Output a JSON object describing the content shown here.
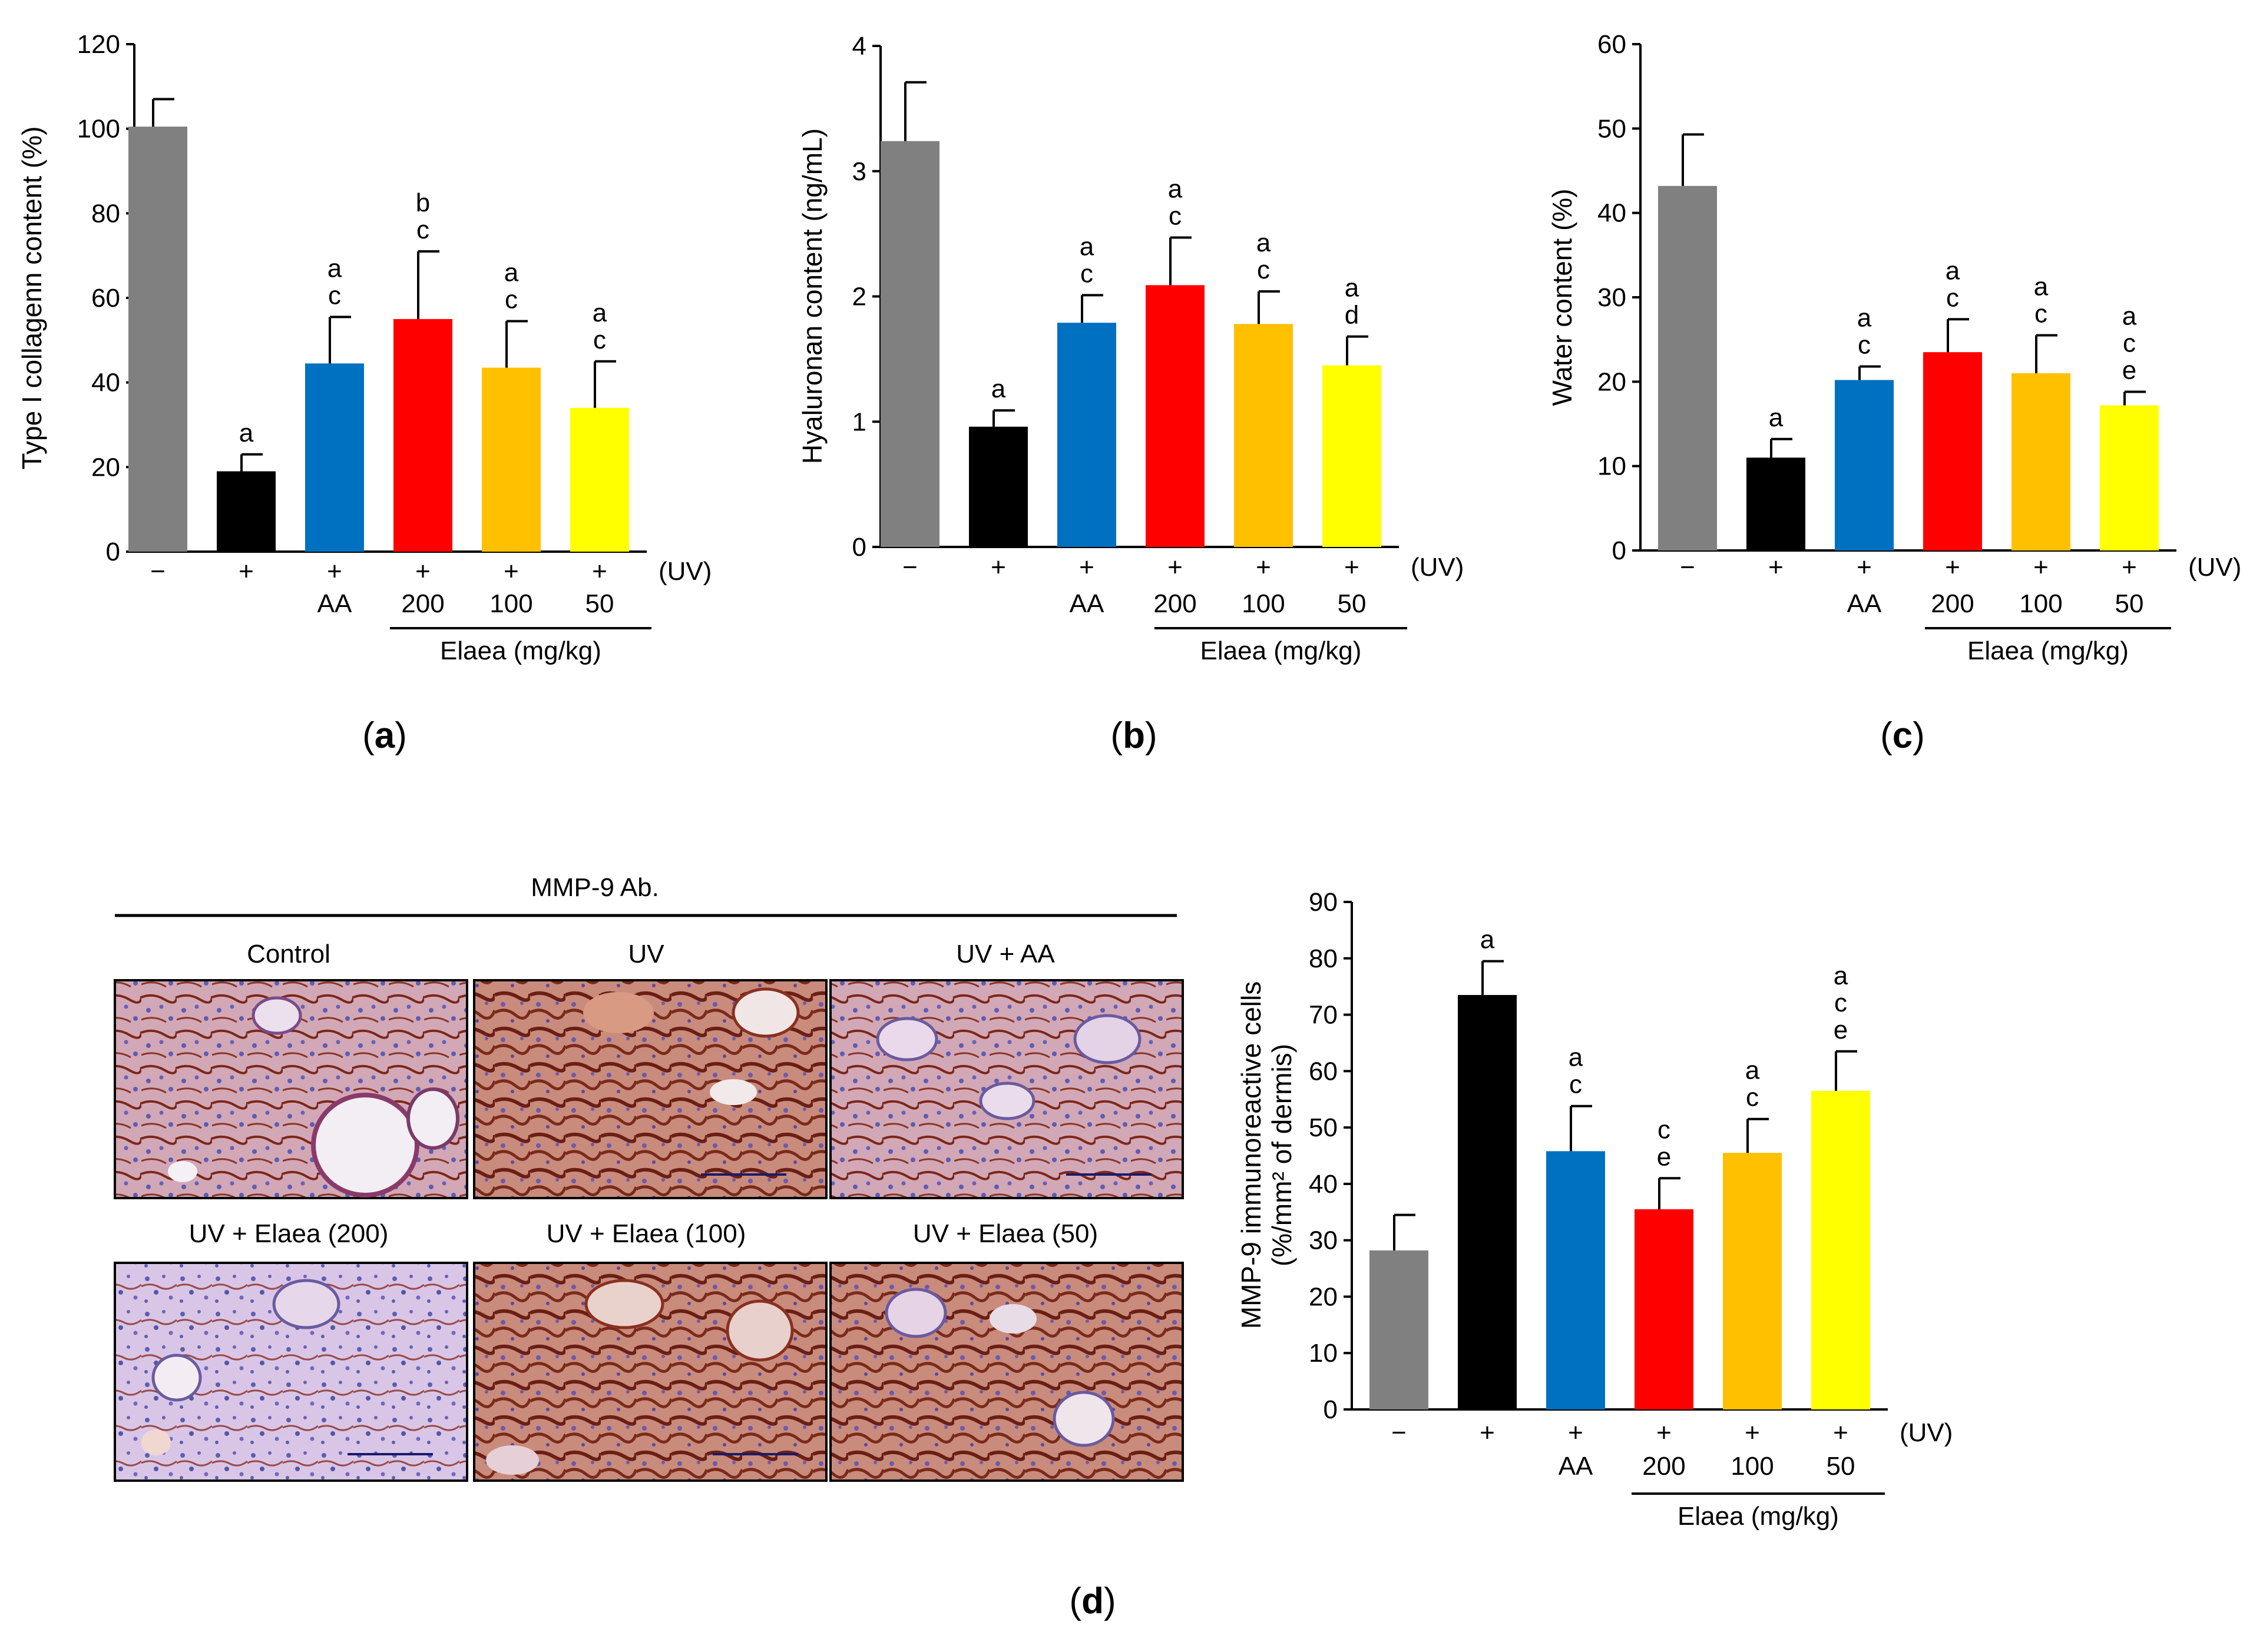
{
  "chart_data": [
    {
      "id": "a",
      "type": "bar",
      "panel_label": "a",
      "ylabel": "Type I collagenn content (%)",
      "ylim": [
        0,
        120
      ],
      "yticks": [
        0,
        20,
        40,
        60,
        80,
        100,
        120
      ],
      "values": [
        100.5,
        19,
        44.5,
        55,
        43.5,
        34
      ],
      "errors": [
        6.5,
        4,
        11,
        16,
        11,
        11
      ],
      "sig": [
        [],
        [
          "a"
        ],
        [
          "a",
          "c"
        ],
        [
          "b",
          "c"
        ],
        [
          "a",
          "c"
        ],
        [
          "a",
          "c"
        ]
      ],
      "uv": [
        "−",
        "+",
        "+",
        "+",
        "+",
        "+"
      ],
      "uv_label": "(UV)",
      "treatments": [
        "",
        "",
        "AA",
        "200",
        "100",
        "50"
      ],
      "group_label": "Elaea (mg/kg)",
      "colors": [
        "#808080",
        "#000000",
        "#0070C0",
        "#FF0000",
        "#FFC000",
        "#FFFF00"
      ]
    },
    {
      "id": "b",
      "type": "bar",
      "panel_label": "b",
      "ylabel": "Hyaluronan content (ng/mL)",
      "ylim": [
        0,
        4
      ],
      "yticks": [
        0,
        1,
        2,
        3,
        4
      ],
      "values": [
        3.24,
        0.96,
        1.79,
        2.09,
        1.78,
        1.45
      ],
      "errors": [
        0.47,
        0.13,
        0.22,
        0.38,
        0.26,
        0.23
      ],
      "sig": [
        [],
        [
          "a"
        ],
        [
          "a",
          "c"
        ],
        [
          "a",
          "c"
        ],
        [
          "a",
          "c"
        ],
        [
          "a",
          "d"
        ]
      ],
      "uv": [
        "−",
        "+",
        "+",
        "+",
        "+",
        "+"
      ],
      "uv_label": "(UV)",
      "treatments": [
        "",
        "",
        "AA",
        "200",
        "100",
        "50"
      ],
      "group_label": "Elaea (mg/kg)",
      "colors": [
        "#808080",
        "#000000",
        "#0070C0",
        "#FF0000",
        "#FFC000",
        "#FFFF00"
      ]
    },
    {
      "id": "c",
      "type": "bar",
      "panel_label": "c",
      "ylabel": "Water content (%)",
      "ylim": [
        0,
        60
      ],
      "yticks": [
        0,
        10,
        20,
        30,
        40,
        50,
        60
      ],
      "values": [
        43.2,
        11,
        20.2,
        23.5,
        21,
        17.2
      ],
      "errors": [
        6.1,
        2.2,
        1.6,
        3.9,
        4.5,
        1.6
      ],
      "sig": [
        [],
        [
          "a"
        ],
        [
          "a",
          "c"
        ],
        [
          "a",
          "c"
        ],
        [
          "a",
          "c"
        ],
        [
          "a",
          "c",
          "e"
        ]
      ],
      "uv": [
        "−",
        "+",
        "+",
        "+",
        "+",
        "+"
      ],
      "uv_label": "(UV)",
      "treatments": [
        "",
        "",
        "AA",
        "200",
        "100",
        "50"
      ],
      "group_label": "Elaea (mg/kg)",
      "colors": [
        "#808080",
        "#000000",
        "#0070C0",
        "#FF0000",
        "#FFC000",
        "#FFFF00"
      ]
    },
    {
      "id": "d",
      "type": "bar",
      "panel_label": "d",
      "ylabel_line1": "MMP-9 immunoreactive cells",
      "ylabel_line2": "(%/mm² of dermis)",
      "ylim": [
        0,
        90
      ],
      "yticks": [
        0,
        10,
        20,
        30,
        40,
        50,
        60,
        70,
        80,
        90
      ],
      "values": [
        28.2,
        73.5,
        45.8,
        35.5,
        45.5,
        56.5
      ],
      "errors": [
        6.3,
        6,
        8,
        5.5,
        6,
        7
      ],
      "sig": [
        [],
        [
          "a"
        ],
        [
          "a",
          "c"
        ],
        [
          "c",
          "e"
        ],
        [
          "a",
          "c"
        ],
        [
          "a",
          "c",
          "e"
        ]
      ],
      "uv": [
        "−",
        "+",
        "+",
        "+",
        "+",
        "+"
      ],
      "uv_label": "(UV)",
      "treatments": [
        "",
        "",
        "AA",
        "200",
        "100",
        "50"
      ],
      "group_label": "Elaea (mg/kg)",
      "colors": [
        "#808080",
        "#000000",
        "#0070C0",
        "#FF0000",
        "#FFC000",
        "#FFFF00"
      ]
    }
  ],
  "histology": {
    "header": "MMP-9 Ab.",
    "panels": [
      {
        "label": "Control",
        "tone": "control"
      },
      {
        "label": "UV",
        "tone": "uv"
      },
      {
        "label": "UV + AA",
        "tone": "aa"
      },
      {
        "label": "UV + Elaea (200)",
        "tone": "e200"
      },
      {
        "label": "UV + Elaea (100)",
        "tone": "e100"
      },
      {
        "label": "UV + Elaea (50)",
        "tone": "e50"
      }
    ]
  }
}
